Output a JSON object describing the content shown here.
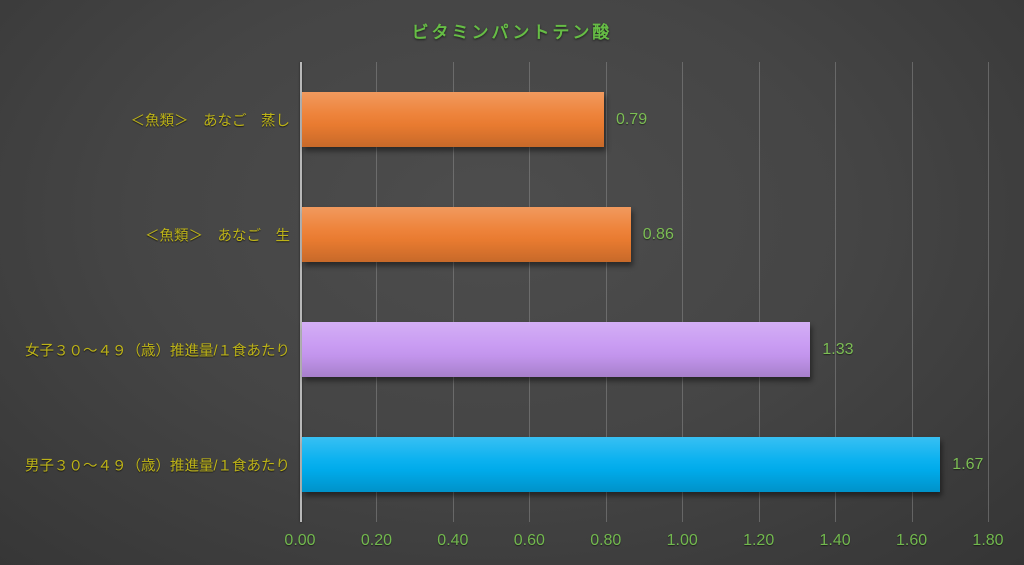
{
  "chart_data": {
    "type": "bar",
    "orientation": "horizontal",
    "title": "ビタミンパントテン酸",
    "categories": [
      "＜魚類＞　あなご　蒸し",
      "＜魚類＞　あなご　生",
      "女子３０～４９（歳）推進量/１食あたり",
      "男子３０～４９（歳）推進量/１食あたり"
    ],
    "values": [
      0.79,
      0.86,
      1.33,
      1.67
    ],
    "value_labels": [
      "0.79",
      "0.86",
      "1.33",
      "1.67"
    ],
    "bar_colors": [
      "#ED7D31",
      "#ED7D31",
      "#C798F2",
      "#00AEEF"
    ],
    "xlabel": "",
    "ylabel": "",
    "xlim": [
      0,
      1.8
    ],
    "x_ticks": [
      "0.00",
      "0.20",
      "0.40",
      "0.60",
      "0.80",
      "1.00",
      "1.20",
      "1.40",
      "1.60",
      "1.80"
    ],
    "grid": true,
    "legend": "none",
    "colors": {
      "background": "#404040",
      "title_text": "#66BD45",
      "category_text": "#BDB317",
      "value_text": "#7CBE54",
      "tick_text": "#72B84E",
      "gridline": "#6A6A6A",
      "axis_line": "#B8B8B8"
    }
  }
}
